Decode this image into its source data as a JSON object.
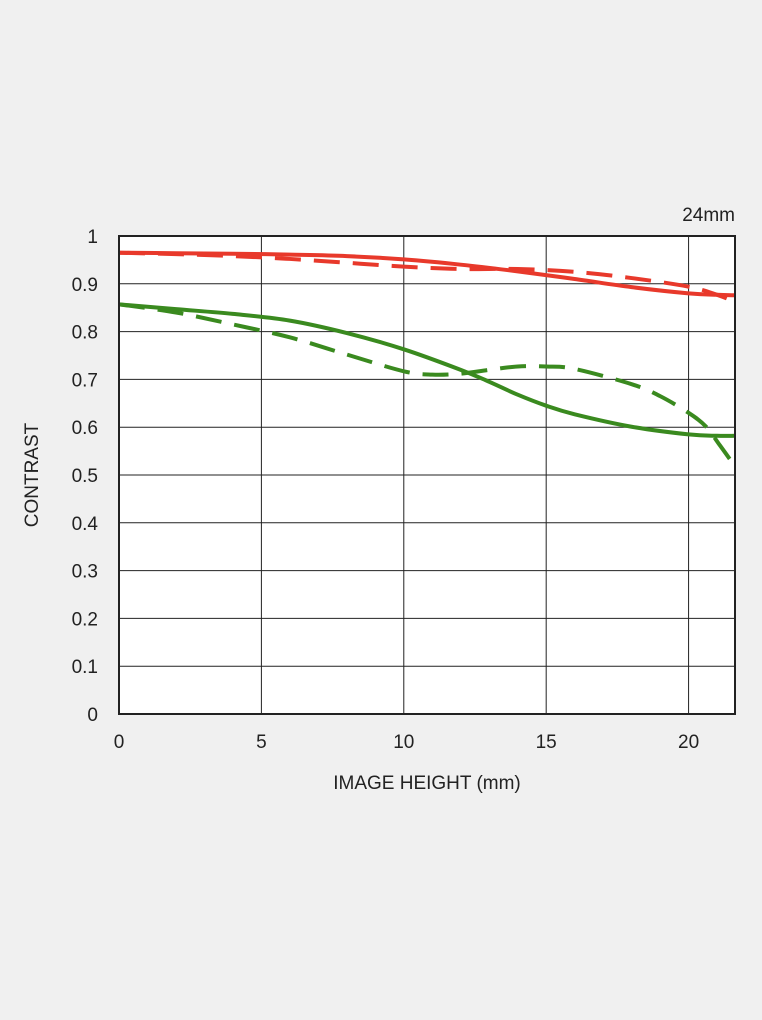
{
  "chart_data": {
    "type": "line",
    "title": "24mm",
    "xlabel": "IMAGE HEIGHT (mm)",
    "ylabel": "CONTRAST",
    "xlim": [
      0,
      21.63
    ],
    "ylim": [
      0,
      1
    ],
    "x_ticks": [
      "0",
      "5",
      "10",
      "15",
      "20"
    ],
    "y_ticks": [
      "0",
      "0.1",
      "0.2",
      "0.3",
      "0.4",
      "0.5",
      "0.6",
      "0.7",
      "0.8",
      "0.9",
      "1"
    ],
    "grid": true,
    "legend": "none",
    "colors": {
      "red": "#e8392b",
      "green": "#3a8a1f",
      "grid": "#222222",
      "background": "#ffffff"
    },
    "series": [
      {
        "color": "red",
        "style": "solid",
        "x": [
          0,
          2,
          4,
          6,
          8,
          10,
          12,
          14,
          16,
          18,
          20,
          21,
          21.63
        ],
        "y": [
          0.965,
          0.964,
          0.963,
          0.961,
          0.958,
          0.951,
          0.94,
          0.926,
          0.91,
          0.893,
          0.88,
          0.877,
          0.876
        ]
      },
      {
        "color": "red",
        "style": "dashed",
        "x": [
          0,
          2,
          4,
          6,
          8,
          10,
          12,
          14,
          16,
          18,
          20,
          21,
          21.63
        ],
        "y": [
          0.965,
          0.962,
          0.958,
          0.952,
          0.944,
          0.936,
          0.931,
          0.931,
          0.925,
          0.912,
          0.894,
          0.877,
          0.862
        ]
      },
      {
        "color": "green",
        "style": "solid",
        "x": [
          0,
          2,
          4,
          6,
          8,
          10,
          12,
          13,
          14,
          15,
          16,
          18,
          20,
          21,
          21.63
        ],
        "y": [
          0.857,
          0.847,
          0.837,
          0.823,
          0.797,
          0.763,
          0.72,
          0.695,
          0.668,
          0.645,
          0.627,
          0.601,
          0.585,
          0.582,
          0.582
        ]
      },
      {
        "color": "green",
        "style": "dashed",
        "x": [
          0,
          2,
          4,
          6,
          8,
          10,
          11,
          12,
          13,
          14,
          15,
          16,
          18,
          19,
          20,
          20.6,
          21.1,
          21.63
        ],
        "y": [
          0.857,
          0.84,
          0.815,
          0.788,
          0.752,
          0.717,
          0.71,
          0.712,
          0.72,
          0.727,
          0.727,
          0.722,
          0.69,
          0.665,
          0.63,
          0.602,
          0.562,
          0.518
        ]
      }
    ]
  }
}
